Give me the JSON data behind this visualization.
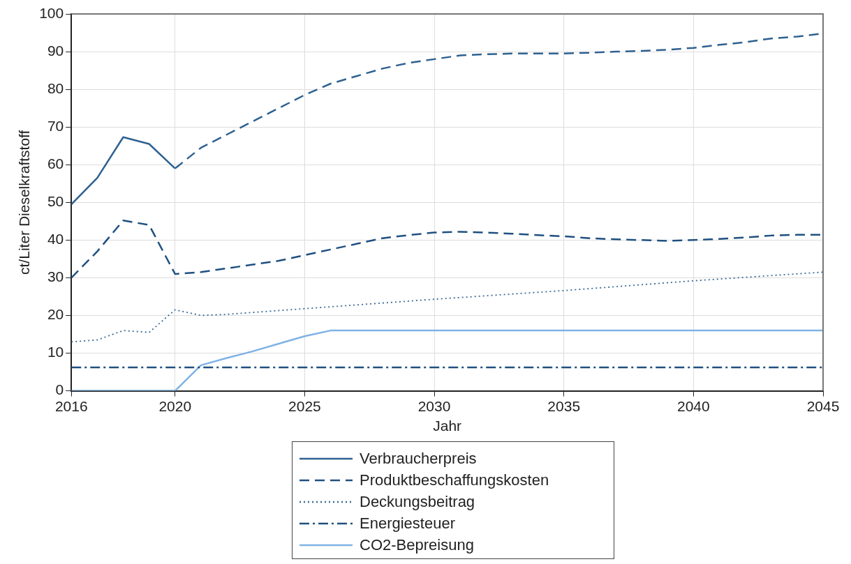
{
  "chart_data": {
    "type": "line",
    "xlabel": "Jahr",
    "ylabel": "ct/Liter Dieselkraftstoff",
    "xlim": [
      2016,
      2045
    ],
    "xticks": [
      2016,
      2020,
      2025,
      2030,
      2035,
      2040,
      2045
    ],
    "ylim": [
      0,
      100
    ],
    "yticks": [
      0,
      10,
      20,
      30,
      40,
      50,
      60,
      70,
      80,
      90,
      100
    ],
    "grid": true,
    "legend": "bottom",
    "marker": "none",
    "series": [
      {
        "name": "Verbraucherpreis",
        "color": "#2e6190",
        "line_style": "solid",
        "x": [
          2016,
          2017,
          2018,
          2019,
          2020
        ],
        "values": [
          49.5,
          56.5,
          67.3,
          65.5,
          59
        ]
      },
      {
        "color": "#2e6190",
        "line_style": "dashed",
        "x": [
          2020,
          2021,
          2022,
          2023,
          2024,
          2025,
          2026,
          2027,
          2028,
          2029,
          2030,
          2031,
          2032,
          2033,
          2034,
          2035,
          2036,
          2037,
          2038,
          2039,
          2040,
          2041,
          2042,
          2043,
          2044,
          2045
        ],
        "values": [
          59,
          64.5,
          68,
          71.5,
          75,
          78.5,
          81.5,
          83.5,
          85.5,
          87,
          88,
          89,
          89.3,
          89.5,
          89.5,
          89.5,
          89.7,
          90,
          90.2,
          90.5,
          91,
          91.8,
          92.5,
          93.5,
          94,
          94.8
        ]
      },
      {
        "name": "Produktbeschaffungskosten",
        "color": "#1f5080",
        "line_style": "dashed",
        "x": [
          2016,
          2017,
          2018,
          2019,
          2020,
          2021,
          2022,
          2023,
          2024,
          2025,
          2026,
          2027,
          2028,
          2029,
          2030,
          2031,
          2032,
          2033,
          2034,
          2035,
          2036,
          2037,
          2038,
          2039,
          2040,
          2041,
          2042,
          2043,
          2044,
          2045
        ],
        "values": [
          30,
          37,
          45.2,
          44,
          31,
          31.5,
          32.5,
          33.5,
          34.5,
          36,
          37.5,
          39,
          40.5,
          41.3,
          42,
          42.2,
          42,
          41.7,
          41.3,
          41,
          40.5,
          40.2,
          40,
          39.8,
          40,
          40.3,
          40.7,
          41.2,
          41.4,
          41.4
        ]
      },
      {
        "name": "Deckungsbeitrag",
        "color": "#3a6a96",
        "line_style": "dotted",
        "x": [
          2016,
          2017,
          2018,
          2019,
          2020,
          2021,
          2022,
          2025,
          2030,
          2035,
          2040,
          2045
        ],
        "values": [
          13,
          13.5,
          16,
          15.5,
          21.5,
          20,
          20.3,
          21.8,
          24.3,
          26.6,
          29.2,
          31.5
        ]
      },
      {
        "name": "Energiesteuer",
        "color": "#1f5080",
        "line_style": "dashdot",
        "x": [
          2016,
          2045
        ],
        "values": [
          6.2,
          6.2
        ]
      },
      {
        "name": "CO2-Bepreisung",
        "color": "#7fb2e5",
        "line_style": "solid",
        "x": [
          2016,
          2020,
          2021,
          2022,
          2023,
          2024,
          2025,
          2026,
          2045
        ],
        "values": [
          0,
          0,
          6.8,
          8.7,
          10.5,
          12.5,
          14.5,
          16,
          16
        ]
      }
    ]
  }
}
